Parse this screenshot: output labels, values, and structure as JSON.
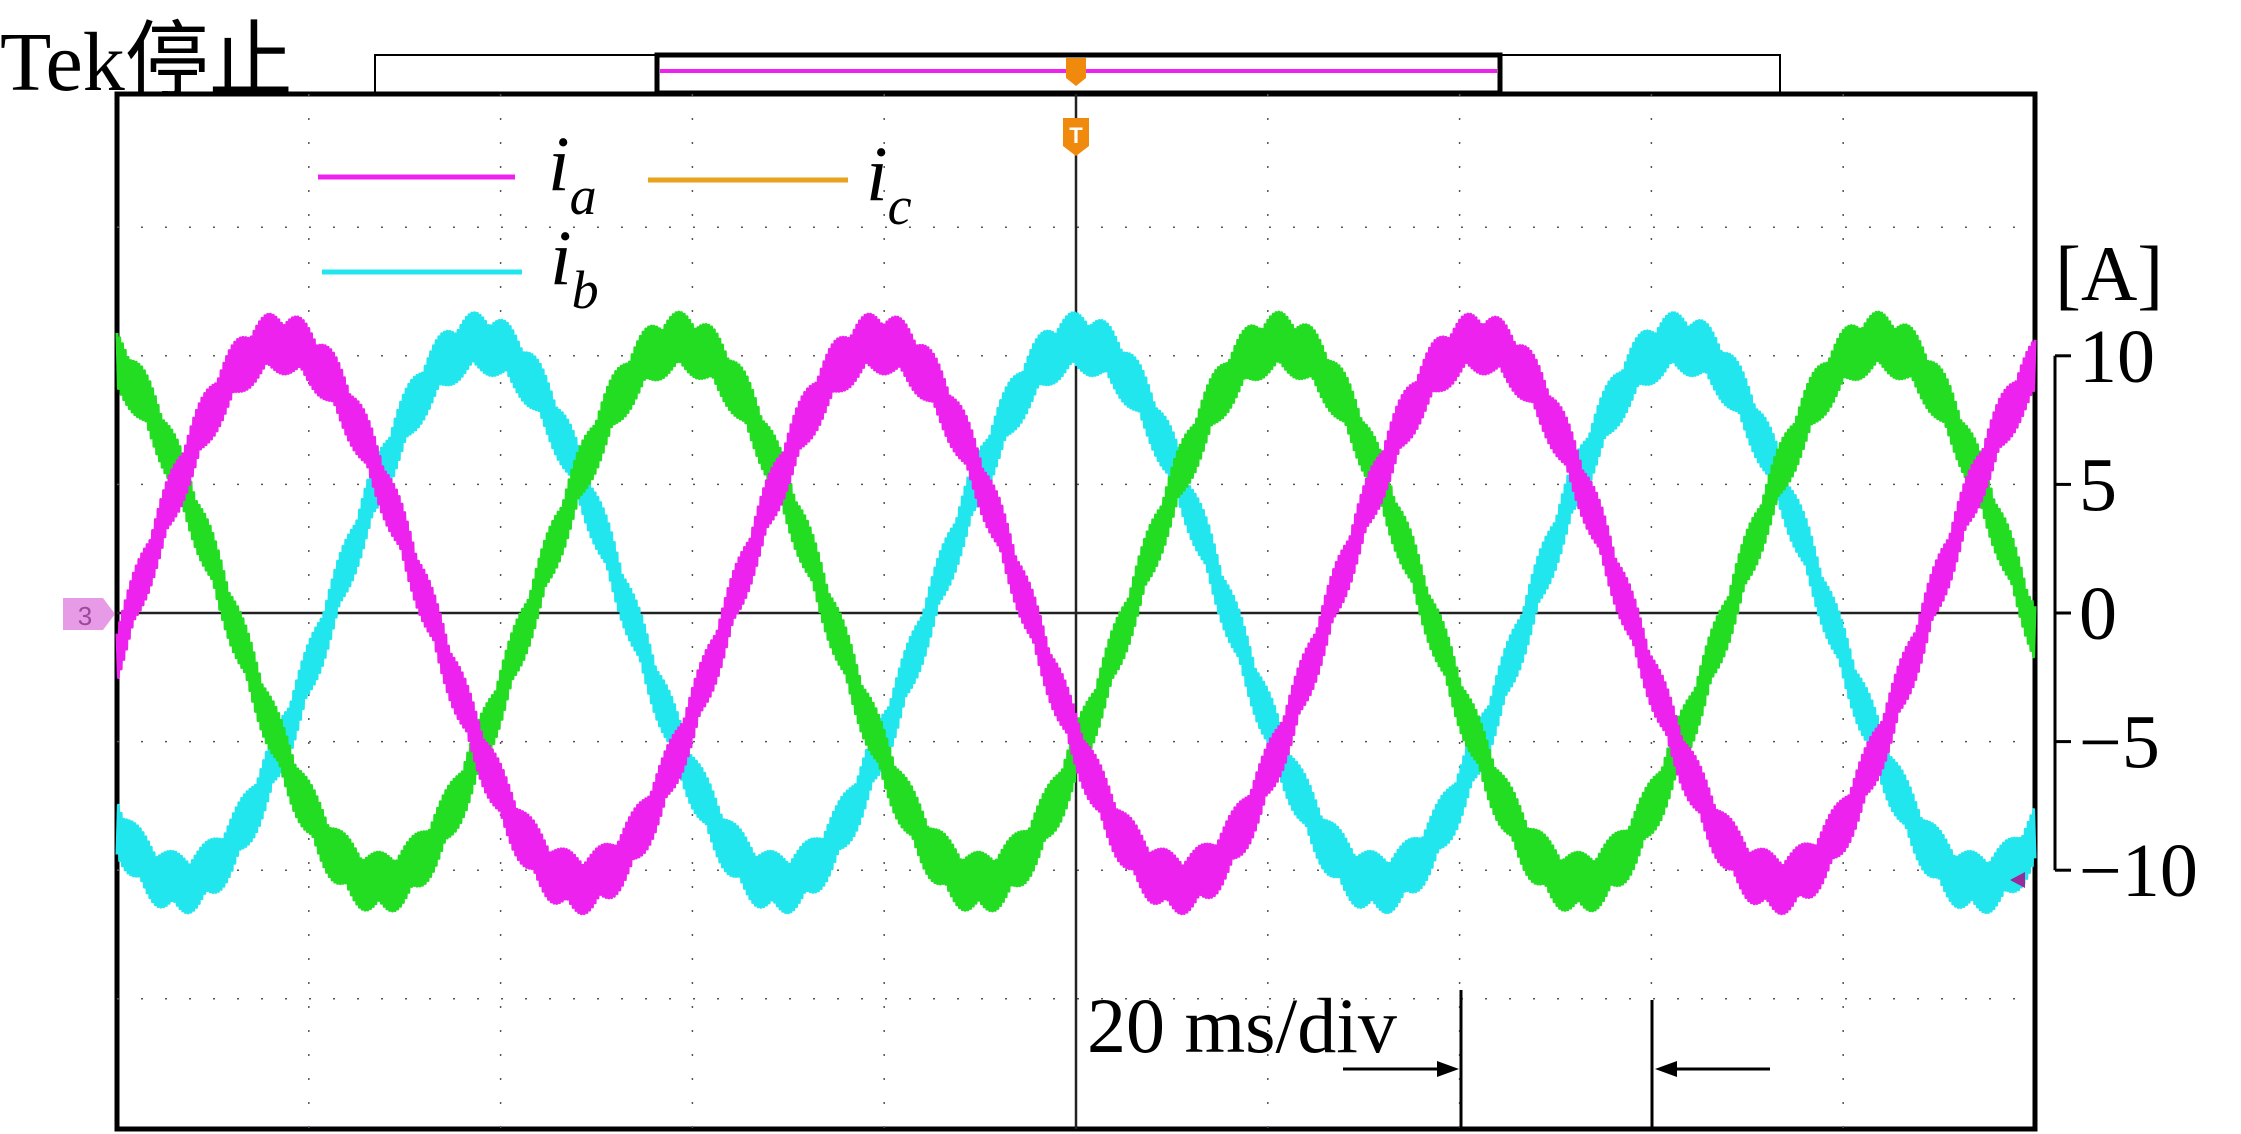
{
  "header": {
    "brand": "Tek",
    "status": "停止",
    "trigger_marker": "T",
    "channel_marker": "3"
  },
  "colors": {
    "ia": "#ee22ee",
    "ib": "#22e6ee",
    "ic_legend": "#e8a21e",
    "ic_trace": "#22dd22",
    "trigger": "#f08a0c",
    "grid": "#555555"
  },
  "chart_data": {
    "type": "line",
    "title": "",
    "xlabel": "20 ms/div",
    "ylabel": "[A]",
    "time_per_div_ms": 20,
    "x_range_ms": [
      -100,
      100
    ],
    "ylim": [
      -10,
      10
    ],
    "yticks": [
      10,
      5,
      0,
      -5,
      -10
    ],
    "ytick_labels": [
      "10",
      "5",
      "0",
      "−5",
      "−10"
    ],
    "frequency_hz": 16,
    "amplitude_a": 10.5,
    "ripple_a": 1.2,
    "series": [
      {
        "name": "ia",
        "label_base": "i",
        "label_sub": "a",
        "color": "#ee22ee",
        "phase_deg": -152
      },
      {
        "name": "ib",
        "label_base": "i",
        "label_sub": "b",
        "color": "#22e6ee",
        "phase_deg": 88
      },
      {
        "name": "ic",
        "label_base": "i",
        "label_sub": "c",
        "color": "#22dd22",
        "legend_color": "#e8a21e",
        "phase_deg": -32
      }
    ],
    "scale_annotation": "20 ms/div"
  }
}
